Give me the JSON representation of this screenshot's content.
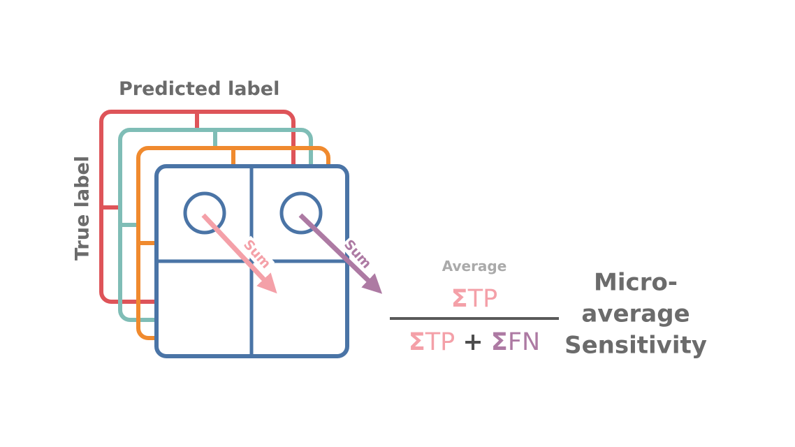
{
  "labels": {
    "predicted": "Predicted label",
    "true": "True label"
  },
  "arrows": {
    "tp_sum": "Sum",
    "fn_sum": "Sum"
  },
  "formula": {
    "average": "Average",
    "numerator": {
      "sigma": "Σ",
      "term": "TP"
    },
    "denominator": {
      "sigma1": "Σ",
      "term1": "TP",
      "plus": "+",
      "sigma2": "Σ",
      "term2": "FN"
    }
  },
  "result": {
    "line1": "Micro-",
    "line2": "average",
    "line3": "Sensitivity"
  },
  "colors": {
    "matrix_red": "#de5459",
    "matrix_teal": "#7fbdb6",
    "matrix_orange": "#f08a2e",
    "matrix_blue": "#4a74a6",
    "tp_pink": "#f4a0a8",
    "fn_purple": "#ad7aa3",
    "text_gray": "#6b6b6b"
  }
}
